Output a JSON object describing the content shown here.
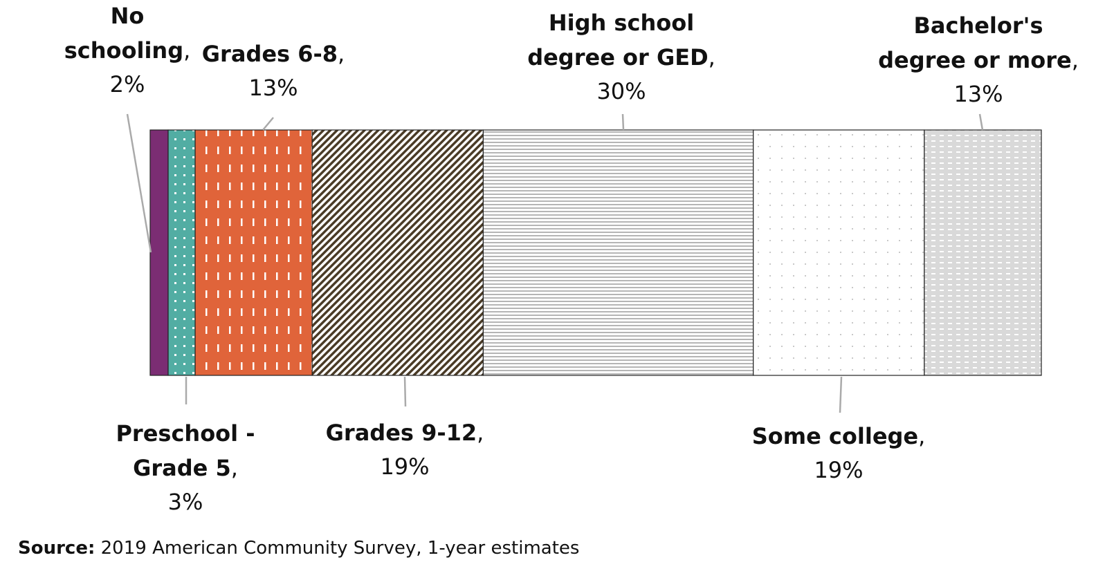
{
  "chart_data": {
    "type": "bar",
    "orientation": "horizontal",
    "stacked": true,
    "percent": true,
    "grid": false,
    "legend": "none",
    "series": [
      {
        "label": [
          "No",
          "schooling"
        ],
        "value": 2,
        "display": "2%",
        "color": "#7b2d73",
        "pattern": "solid",
        "placement": "above"
      },
      {
        "label": [
          "Preschool -",
          "Grade 5"
        ],
        "value": 3,
        "display": "3%",
        "color": "#52ada3",
        "pattern": "dots-white",
        "placement": "below"
      },
      {
        "label": [
          "Grades 6-8"
        ],
        "value": 13,
        "display": "13%",
        "color": "#e0643a",
        "pattern": "dashes-white",
        "placement": "above"
      },
      {
        "label": [
          "Grades 9-12"
        ],
        "value": 19,
        "display": "19%",
        "color": "#4a3b26",
        "pattern": "diagonal-stripes",
        "placement": "below"
      },
      {
        "label": [
          "High school",
          "degree or GED"
        ],
        "value": 30,
        "display": "30%",
        "color": "#b5b5b5",
        "pattern": "horizontal-lines",
        "placement": "above"
      },
      {
        "label": [
          "Some college"
        ],
        "value": 19,
        "display": "19%",
        "color": "#c8c8c8",
        "pattern": "sparse-dots",
        "placement": "below"
      },
      {
        "label": [
          "Bachelor's",
          "degree or more"
        ],
        "value": 13,
        "display": "13%",
        "color": "#d9d9d9",
        "pattern": "grey-dashes",
        "placement": "above"
      }
    ]
  },
  "source": {
    "label": "Source:",
    "text": " 2019 American Community Survey, 1-year estimates"
  }
}
